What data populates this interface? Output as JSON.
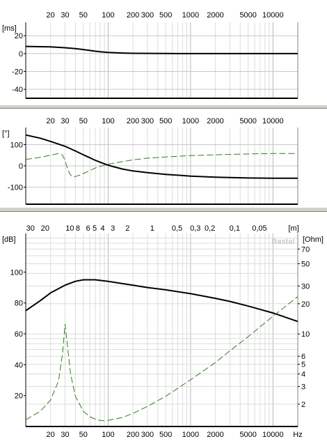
{
  "chart_data": [
    {
      "id": "delay",
      "type": "line",
      "ylabel": "[ms]",
      "x_scale": "log",
      "xlim": [
        10,
        20000
      ],
      "ylim": [
        -50,
        35
      ],
      "x_ticks": [
        20,
        30,
        50,
        100,
        200,
        300,
        500,
        1000,
        2000,
        5000,
        10000
      ],
      "y_ticks": [
        20,
        0,
        -20,
        -40
      ],
      "grid": true,
      "series": [
        {
          "style": "solid",
          "color": "#000000",
          "x": [
            10,
            20,
            30,
            40,
            50,
            60,
            70,
            80,
            100,
            150,
            200,
            500,
            1000,
            5000,
            20000
          ],
          "y": [
            8,
            7.5,
            6.5,
            5.5,
            4.5,
            3.5,
            2.6,
            2.0,
            1.2,
            0.6,
            0.3,
            0.1,
            0,
            0,
            0
          ]
        }
      ]
    },
    {
      "id": "phase",
      "type": "line",
      "ylabel": "[°]",
      "x_scale": "log",
      "xlim": [
        10,
        20000
      ],
      "ylim": [
        -180,
        180
      ],
      "x_ticks": [
        20,
        30,
        50,
        100,
        200,
        300,
        500,
        1000,
        2000,
        5000,
        10000
      ],
      "y_ticks": [
        100,
        0,
        -100
      ],
      "grid": true,
      "series": [
        {
          "style": "solid",
          "color": "#000000",
          "x": [
            10,
            15,
            20,
            30,
            40,
            50,
            60,
            70,
            80,
            100,
            150,
            200,
            300,
            500,
            1000,
            2000,
            3000,
            5000,
            10000,
            20000
          ],
          "y": [
            145,
            130,
            115,
            92,
            70,
            52,
            38,
            26,
            17,
            3,
            -15,
            -24,
            -32,
            -40,
            -48,
            -53,
            -55,
            -57,
            -58,
            -58
          ]
        },
        {
          "style": "dashed",
          "color": "#2e7d1e",
          "x": [
            10,
            15,
            20,
            25,
            28,
            30,
            32,
            34,
            36,
            38,
            40,
            45,
            50,
            60,
            70,
            80,
            100,
            150,
            200,
            300,
            500,
            1000,
            2000,
            5000,
            10000,
            20000
          ],
          "y": [
            30,
            40,
            50,
            58,
            50,
            25,
            -10,
            -35,
            -48,
            -52,
            -50,
            -44,
            -36,
            -22,
            -10,
            -2,
            8,
            20,
            28,
            36,
            42,
            48,
            52,
            56,
            58,
            58
          ]
        }
      ]
    },
    {
      "id": "spl",
      "type": "line",
      "ylabel": "[dB]",
      "y2label": "[Ohm]",
      "top_axis_label": "[m]",
      "xlabel": "Hz",
      "x_scale": "log",
      "xlim": [
        10,
        20000
      ],
      "ylim": [
        0,
        125
      ],
      "y2_scale": "log",
      "y2lim": [
        1.2,
        100
      ],
      "x_ticks": [
        20,
        30,
        50,
        100,
        200,
        300,
        500,
        1000,
        2000,
        5000,
        10000
      ],
      "y_ticks": [
        100,
        80,
        60,
        40,
        20
      ],
      "y2_ticks": [
        70,
        50,
        30,
        20,
        10,
        6,
        5,
        4,
        3,
        2
      ],
      "top_ticks": [
        {
          "label": "30",
          "x": 11.4
        },
        {
          "label": "20",
          "x": 17.2
        },
        {
          "label": "10",
          "x": 34.3
        },
        {
          "label": "8",
          "x": 42.9
        },
        {
          "label": "6",
          "x": 57.2
        },
        {
          "label": "5",
          "x": 68.6
        },
        {
          "label": "4",
          "x": 85.8
        },
        {
          "label": "3",
          "x": 114
        },
        {
          "label": "2",
          "x": 172
        },
        {
          "label": "1",
          "x": 343
        },
        {
          "label": "0,5",
          "x": 686
        },
        {
          "label": "0,3",
          "x": 1143
        },
        {
          "label": "0,2",
          "x": 1715
        },
        {
          "label": "0,1",
          "x": 3430
        },
        {
          "label": "0,05",
          "x": 6860
        }
      ],
      "grid": true,
      "watermark": "Basta!",
      "series": [
        {
          "axis": "left",
          "style": "solid",
          "color": "#000000",
          "x": [
            10,
            15,
            20,
            30,
            40,
            50,
            60,
            70,
            80,
            100,
            150,
            200,
            300,
            500,
            1000,
            2000,
            3000,
            5000,
            10000,
            20000
          ],
          "y": [
            75,
            81.5,
            86.5,
            91.5,
            94,
            95,
            95,
            95,
            94.6,
            94,
            92.5,
            91.5,
            90,
            88.5,
            86,
            83,
            81,
            78,
            73.5,
            68
          ]
        },
        {
          "axis": "right",
          "style": "dashed",
          "color": "#2e7d1e",
          "x": [
            10,
            15,
            20,
            25,
            28,
            30,
            32,
            35,
            40,
            50,
            60,
            70,
            80,
            90,
            100,
            150,
            200,
            300,
            500,
            1000,
            2000,
            3000,
            5000,
            10000,
            20000
          ],
          "y": [
            1.4,
            1.7,
            2.2,
            3.4,
            6.5,
            12.5,
            7.8,
            4.0,
            2.4,
            1.7,
            1.5,
            1.42,
            1.38,
            1.37,
            1.38,
            1.48,
            1.62,
            1.9,
            2.4,
            3.5,
            5.2,
            6.8,
            9.4,
            15,
            23.5
          ]
        }
      ]
    }
  ]
}
